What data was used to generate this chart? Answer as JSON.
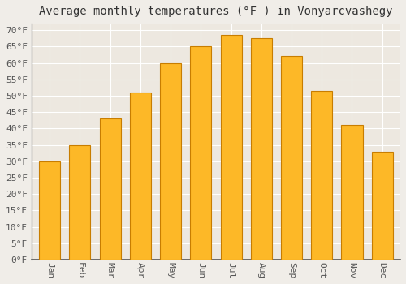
{
  "title": "Average monthly temperatures (°F ) in Vonyarcvashegy",
  "months": [
    "Jan",
    "Feb",
    "Mar",
    "Apr",
    "May",
    "Jun",
    "Jul",
    "Aug",
    "Sep",
    "Oct",
    "Nov",
    "Dec"
  ],
  "values": [
    30,
    35,
    43,
    51,
    60,
    65,
    68.5,
    67.5,
    62,
    51.5,
    41,
    33
  ],
  "bar_color": "#FDB827",
  "bar_edge_color": "#C87D00",
  "background_color": "#F0EDE8",
  "plot_bg_color": "#EDE8E0",
  "grid_color": "#FFFFFF",
  "ytick_min": 0,
  "ytick_max": 70,
  "ytick_step": 5,
  "title_fontsize": 10,
  "tick_fontsize": 8,
  "tick_font": "monospace",
  "bar_width": 0.7
}
